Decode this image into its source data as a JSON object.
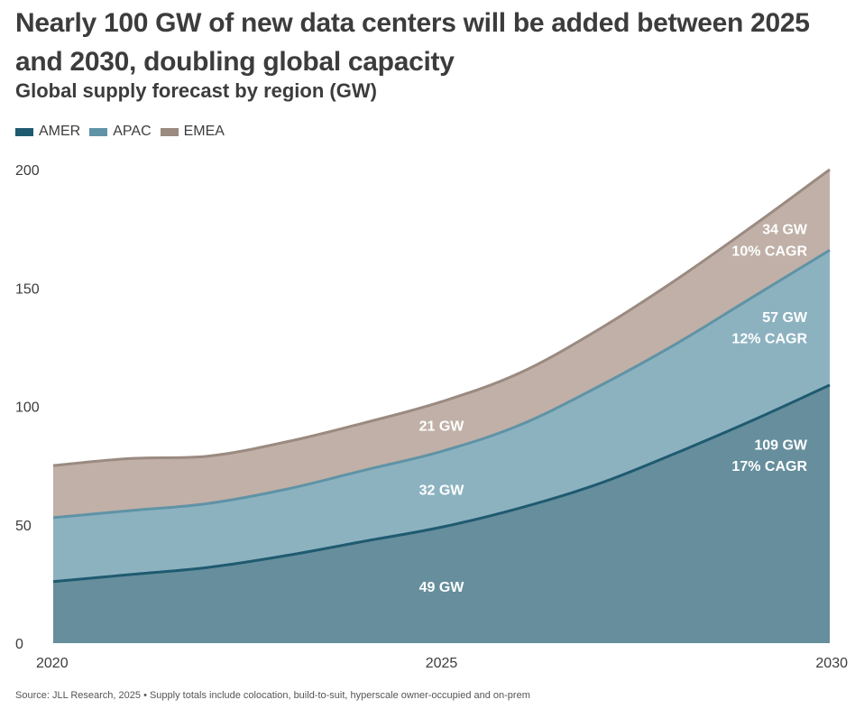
{
  "title": "Nearly 100 GW of new data centers will be added between 2025 and 2030, doubling global capacity",
  "subtitle": "Global supply forecast by region (GW)",
  "source": "Source: JLL Research, 2025 • Supply totals include colocation, build-to-suit, hyperscale owner-occupied and on-prem",
  "colors": {
    "amer_line": "#1f5a70",
    "amer_fill": "#668e9c",
    "apac_line": "#5f93a6",
    "apac_fill": "#8cb2c0",
    "emea_line": "#9a8a80",
    "emea_fill": "#c0b0a7"
  },
  "chart_data": {
    "type": "area",
    "stacked": true,
    "x": [
      2020,
      2021,
      2022,
      2023,
      2024,
      2025,
      2026,
      2027,
      2028,
      2029,
      2030
    ],
    "xticks": [
      "2020",
      "2025",
      "2030"
    ],
    "yticks": [
      "0",
      "50",
      "100",
      "150",
      "200"
    ],
    "ylim": [
      0,
      200
    ],
    "grid": false,
    "legend": "top-left",
    "series": [
      {
        "name": "AMER",
        "values": [
          26,
          29,
          32,
          37,
          43,
          49,
          57,
          67,
          80,
          94,
          109
        ]
      },
      {
        "name": "APAC",
        "values": [
          27,
          27,
          27,
          28,
          30,
          32,
          35,
          41,
          46,
          52,
          57
        ]
      },
      {
        "name": "EMEA",
        "values": [
          22,
          22,
          20,
          20,
          20,
          21,
          22,
          24,
          27,
          30,
          34
        ]
      }
    ],
    "annotations": [
      {
        "text": "49 GW",
        "x": 2025,
        "y": 24
      },
      {
        "text": "32 GW",
        "x": 2025,
        "y": 65
      },
      {
        "text": "21 GW",
        "x": 2025,
        "y": 92
      },
      {
        "text": "109 GW",
        "x": 2029.3,
        "y": 84
      },
      {
        "text": "17% CAGR",
        "x": 2029.3,
        "y": 75
      },
      {
        "text": "57 GW",
        "x": 2029.3,
        "y": 138
      },
      {
        "text": "12% CAGR",
        "x": 2029.3,
        "y": 129
      },
      {
        "text": "34 GW",
        "x": 2029.3,
        "y": 175
      },
      {
        "text": "10% CAGR",
        "x": 2029.3,
        "y": 166
      }
    ]
  }
}
